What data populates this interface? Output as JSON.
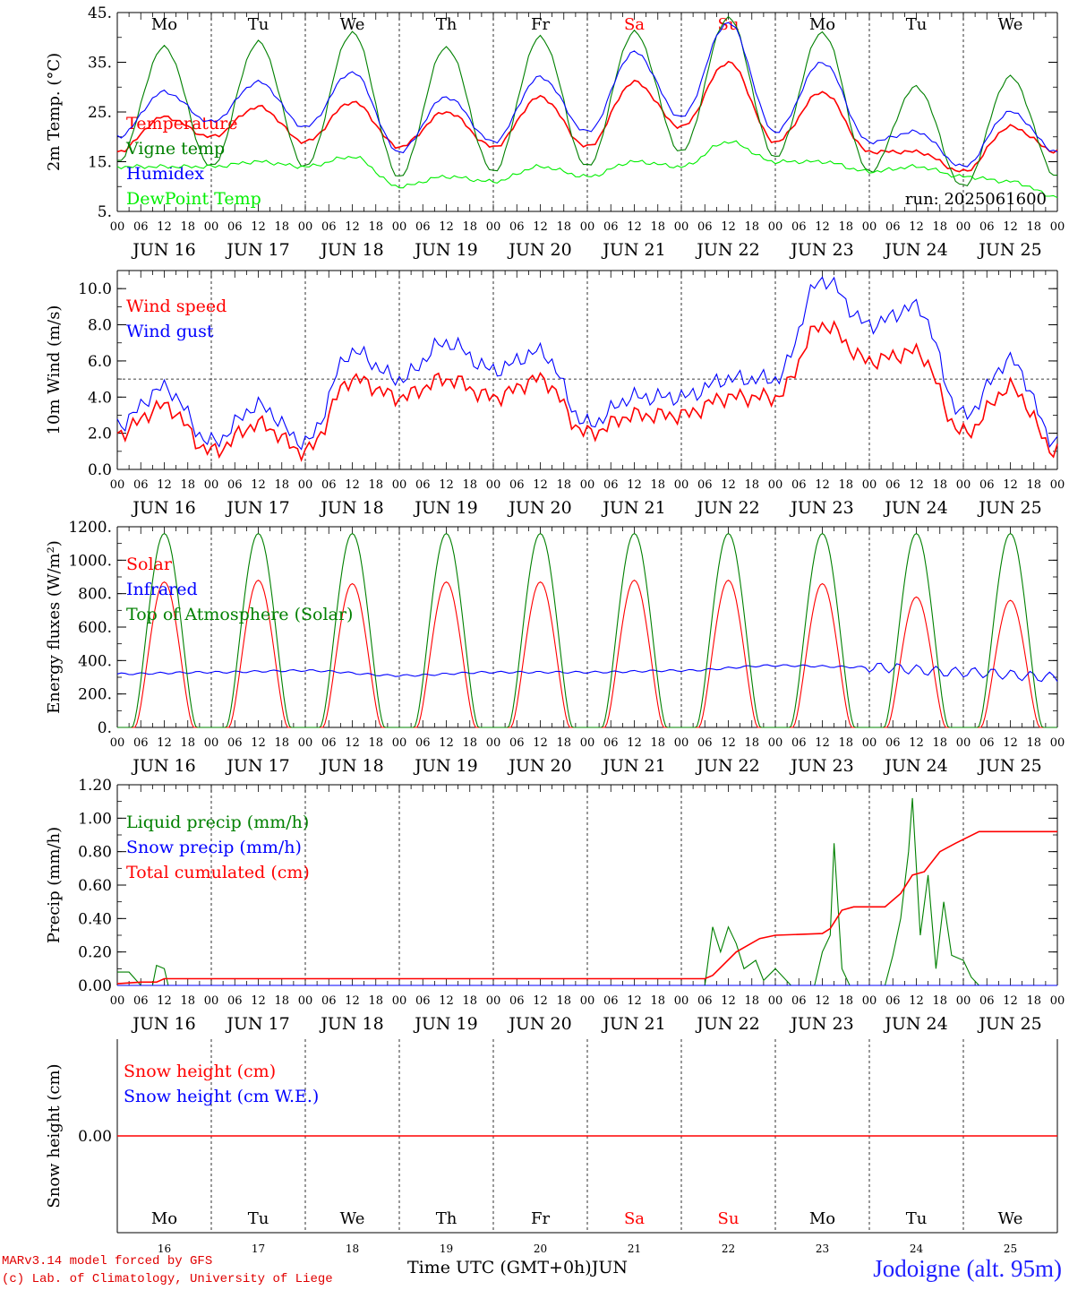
{
  "run_label": "run: 2025061600",
  "x_axis_title": "Time UTC (GMT+0h)",
  "month_label": "JUN",
  "credits": [
    "MARv3.14 model forced by GFS",
    "(c) Lab. of Climatology, University of Liege"
  ],
  "station": "Jodoigne (alt. 95m)",
  "weekdays": [
    "Mo",
    "Tu",
    "We",
    "Th",
    "Fr",
    "Sa",
    "Su",
    "Mo",
    "Tu",
    "We"
  ],
  "weekend_flags": [
    false,
    false,
    false,
    false,
    false,
    true,
    true,
    false,
    false,
    false
  ],
  "day_numbers": [
    "16",
    "17",
    "18",
    "19",
    "20",
    "21",
    "22",
    "23",
    "24",
    "25"
  ],
  "date_labels": [
    "JUN 16",
    "JUN 17",
    "JUN 18",
    "JUN 19",
    "JUN 20",
    "JUN 21",
    "JUN 22",
    "JUN 23",
    "JUN 24",
    "JUN 25"
  ],
  "hour_labels": [
    "00",
    "06",
    "12",
    "18"
  ],
  "colors": {
    "red": "#ff0000",
    "blue": "#0000ff",
    "green": "#008000",
    "lightgreen": "#00ee00",
    "weekend": "#ff0000",
    "grid": "#000000"
  },
  "chart_data": [
    {
      "type": "line",
      "ylabel": "2m Temp. (°C)",
      "ylim": [
        5,
        45
      ],
      "yticks": [
        {
          "v": 5,
          "label": "5."
        },
        {
          "v": 15,
          "label": "15."
        },
        {
          "v": 25,
          "label": "25."
        },
        {
          "v": 35,
          "label": "35."
        },
        {
          "v": 45,
          "label": "45."
        }
      ],
      "x_hours": [
        0,
        12,
        24,
        36,
        48,
        60,
        72,
        84,
        96,
        108,
        120,
        132,
        144,
        156,
        168,
        180,
        192,
        204,
        216,
        228,
        240
      ],
      "series": [
        {
          "name": "Temperature",
          "color": "#ff0000",
          "values": [
            17,
            24,
            20,
            26,
            19,
            27,
            18,
            25,
            18,
            28,
            18,
            31,
            22,
            35,
            19,
            29,
            17,
            17,
            13,
            22,
            17
          ]
        },
        {
          "name": "Vigne temp",
          "color": "#008000",
          "values": [
            15,
            38,
            14,
            39,
            14,
            41,
            12,
            38,
            13,
            40,
            14,
            41,
            17,
            44,
            16,
            41,
            13,
            30,
            10,
            32,
            12
          ]
        },
        {
          "name": "Humidex",
          "color": "#0000ff",
          "values": [
            20,
            29,
            23,
            31,
            22,
            33,
            17,
            28,
            19,
            32,
            21,
            37,
            24,
            43,
            21,
            35,
            19,
            21,
            14,
            25,
            17
          ]
        },
        {
          "name": "DewPoint Temp",
          "color": "#00ee00",
          "values": [
            14,
            14,
            14,
            15,
            14,
            16,
            10,
            12,
            11,
            14,
            12,
            15,
            14,
            19,
            15,
            15,
            13,
            14,
            12,
            11,
            8
          ]
        }
      ],
      "weekday_row": true
    },
    {
      "type": "line",
      "ylabel": "10m Wind (m/s)",
      "ylim": [
        0,
        11
      ],
      "ref_line": 5,
      "yticks": [
        {
          "v": 0,
          "label": "0.0"
        },
        {
          "v": 2,
          "label": "2.0"
        },
        {
          "v": 4,
          "label": "4.0"
        },
        {
          "v": 6,
          "label": "6.0"
        },
        {
          "v": 8,
          "label": "8.0"
        },
        {
          "v": 10,
          "label": "10.0"
        }
      ],
      "x_hours": [
        0,
        12,
        24,
        36,
        48,
        60,
        72,
        84,
        96,
        108,
        120,
        132,
        144,
        156,
        168,
        180,
        192,
        204,
        216,
        228,
        240
      ],
      "series": [
        {
          "name": "Wind speed",
          "color": "#ff0000",
          "values": [
            2,
            3.5,
            1,
            2.5,
            1,
            5,
            4,
            5,
            4,
            5,
            2,
            3,
            3,
            4,
            4,
            8,
            6,
            6.5,
            2,
            4.5,
            1
          ]
        },
        {
          "name": "Wind gust",
          "color": "#0000ff",
          "values": [
            2.5,
            4.5,
            1.5,
            3.5,
            1.5,
            6.5,
            5,
            7,
            5.5,
            6.5,
            2.5,
            4,
            4,
            5,
            5,
            10.5,
            8,
            9,
            3,
            6,
            1.5
          ]
        }
      ]
    },
    {
      "type": "line",
      "ylabel": "Energy fluxes (W/m²)",
      "ylim": [
        0,
        1200
      ],
      "yticks": [
        {
          "v": 0,
          "label": "0."
        },
        {
          "v": 200,
          "label": "200."
        },
        {
          "v": 400,
          "label": "400."
        },
        {
          "v": 600,
          "label": "600."
        },
        {
          "v": 800,
          "label": "800."
        },
        {
          "v": 1000,
          "label": "1000."
        },
        {
          "v": 1200,
          "label": "1200."
        }
      ],
      "series": [
        {
          "name": "Solar",
          "color": "#ff0000",
          "daily_peak": [
            870,
            880,
            860,
            870,
            870,
            880,
            880,
            860,
            780,
            760
          ]
        },
        {
          "name": "Infrared",
          "color": "#0000ff",
          "values": [
            320,
            330,
            340,
            310,
            330,
            330,
            340,
            370,
            360,
            330,
            300
          ]
        },
        {
          "name": "Top of Atmosphere (Solar)",
          "color": "#008000",
          "daily_peak": [
            1160,
            1160,
            1160,
            1160,
            1160,
            1160,
            1160,
            1160,
            1160,
            1160
          ]
        }
      ]
    },
    {
      "type": "line",
      "ylabel": "Precip (mm/h)",
      "ylim": [
        0,
        1.2
      ],
      "yticks": [
        {
          "v": 0,
          "label": "0.00"
        },
        {
          "v": 0.2,
          "label": "0.20"
        },
        {
          "v": 0.4,
          "label": "0.40"
        },
        {
          "v": 0.6,
          "label": "0.60"
        },
        {
          "v": 0.8,
          "label": "0.80"
        },
        {
          "v": 1.0,
          "label": "1.00"
        },
        {
          "v": 1.2,
          "label": "1.20"
        }
      ],
      "series": [
        {
          "name": "Liquid precip (mm/h)",
          "color": "#008000",
          "points": [
            [
              0,
              0.08
            ],
            [
              3,
              0.08
            ],
            [
              6,
              0
            ],
            [
              9,
              0
            ],
            [
              10,
              0.12
            ],
            [
              12,
              0.1
            ],
            [
              13,
              0
            ],
            [
              150,
              0
            ],
            [
              152,
              0.35
            ],
            [
              154,
              0.2
            ],
            [
              156,
              0.35
            ],
            [
              158,
              0.25
            ],
            [
              160,
              0.1
            ],
            [
              163,
              0.15
            ],
            [
              165,
              0.03
            ],
            [
              168,
              0.1
            ],
            [
              172,
              0
            ],
            [
              178,
              0
            ],
            [
              180,
              0.2
            ],
            [
              182,
              0.3
            ],
            [
              183,
              0.85
            ],
            [
              185,
              0.1
            ],
            [
              187,
              0
            ],
            [
              196,
              0
            ],
            [
              198,
              0.18
            ],
            [
              200,
              0.4
            ],
            [
              202,
              0.8
            ],
            [
              203,
              1.12
            ],
            [
              205,
              0.3
            ],
            [
              207,
              0.66
            ],
            [
              209,
              0.1
            ],
            [
              211,
              0.5
            ],
            [
              213,
              0.18
            ],
            [
              216,
              0.15
            ],
            [
              218,
              0.05
            ],
            [
              220,
              0
            ]
          ]
        },
        {
          "name": "Snow precip (mm/h)",
          "color": "#0000ff",
          "points": [
            [
              0,
              0
            ],
            [
              240,
              0
            ]
          ]
        },
        {
          "name": "Total cumulated (cm)",
          "color": "#ff0000",
          "points": [
            [
              0,
              0.01
            ],
            [
              6,
              0.02
            ],
            [
              10,
              0.02
            ],
            [
              12,
              0.04
            ],
            [
              150,
              0.04
            ],
            [
              152,
              0.06
            ],
            [
              158,
              0.2
            ],
            [
              164,
              0.28
            ],
            [
              168,
              0.3
            ],
            [
              180,
              0.31
            ],
            [
              182,
              0.34
            ],
            [
              185,
              0.45
            ],
            [
              188,
              0.47
            ],
            [
              196,
              0.47
            ],
            [
              200,
              0.55
            ],
            [
              203,
              0.66
            ],
            [
              206,
              0.68
            ],
            [
              210,
              0.8
            ],
            [
              214,
              0.85
            ],
            [
              220,
              0.92
            ],
            [
              240,
              0.92
            ]
          ]
        }
      ]
    },
    {
      "type": "line",
      "ylabel": "Snow height (cm)",
      "ylim": [
        -1,
        1
      ],
      "yticks": [
        {
          "v": 0,
          "label": "0.00"
        }
      ],
      "series": [
        {
          "name": "Snow height (cm)",
          "color": "#ff0000",
          "points": [
            [
              0,
              0
            ],
            [
              240,
              0
            ]
          ]
        },
        {
          "name": "Snow height (cm W.E.)",
          "color": "#0000ff",
          "points": []
        }
      ],
      "bottom_weekday_row": true
    }
  ]
}
